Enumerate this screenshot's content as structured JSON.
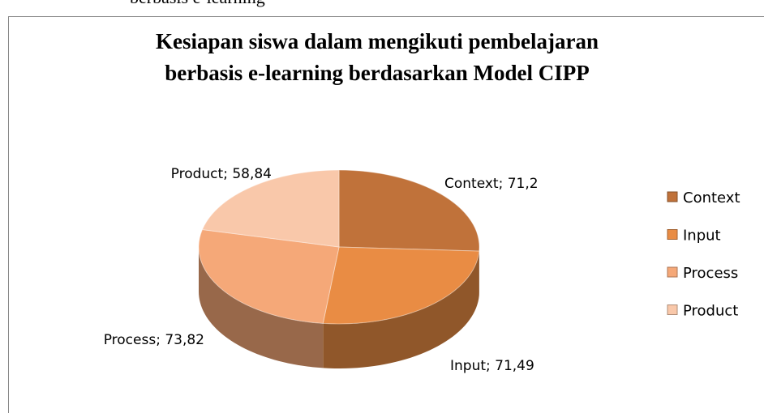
{
  "caption": "berbasis e-learning",
  "chart_data": {
    "type": "pie",
    "title": [
      "Kesiapan siswa dalam mengikuti pembelajaran",
      "berbasis e-learning berdasarkan Model CIPP"
    ],
    "categories": [
      "Context",
      "Input",
      "Process",
      "Product"
    ],
    "values": [
      71.2,
      71.49,
      73.82,
      58.84
    ],
    "value_labels": [
      "Context; 71,2",
      "Input; 71,49",
      "Process; 73,82",
      "Product; 58,84"
    ],
    "colors": [
      "#c0723a",
      "#e98c44",
      "#f5a878",
      "#f9c8aa"
    ],
    "legend": "right"
  }
}
